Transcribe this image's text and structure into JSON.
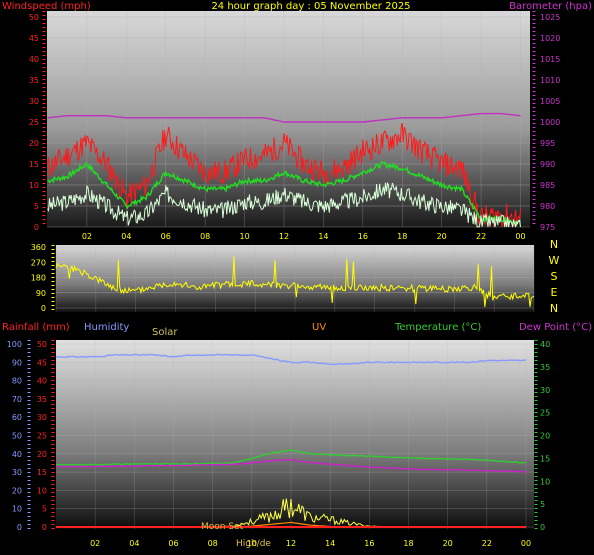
{
  "colors": {
    "wind_avg": "#22dd22",
    "wind_gust": "#ff1a1a",
    "wind_speed": "#d8ffd8",
    "baro": "#c030c0",
    "winddir": "#ffff00",
    "rain": "#ff2020",
    "humidity": "#8899ff",
    "solar": "#ffff44",
    "uv": "#ff8800",
    "temp": "#33cc33",
    "dew": "#cc22cc"
  },
  "chart_data": [
    {
      "type": "line",
      "title": "24 hour graph day : 05 November 2025",
      "y_left_label": "Windspeed (mph)",
      "y_right_label": "Barometer (hpa)",
      "x_ticks": [
        "02",
        "04",
        "06",
        "08",
        "10",
        "12",
        "14",
        "16",
        "18",
        "20",
        "22",
        "00"
      ],
      "y_left_ticks": [
        "0",
        "5",
        "10",
        "15",
        "20",
        "25",
        "30",
        "35",
        "40",
        "45",
        "50"
      ],
      "y_right_ticks": [
        "975",
        "980",
        "985",
        "990",
        "995",
        "1000",
        "1005",
        "1010",
        "1015",
        "1020",
        "1025"
      ],
      "ylim_left": [
        0,
        50
      ],
      "ylim_right": [
        975,
        1025
      ],
      "x_hours": [
        0,
        1,
        2,
        3,
        4,
        5,
        6,
        7,
        8,
        9,
        10,
        11,
        12,
        13,
        14,
        15,
        16,
        17,
        18,
        19,
        20,
        21,
        22,
        23,
        24
      ],
      "series": [
        {
          "key": "gust",
          "values": [
            14,
            17,
            20,
            15,
            7,
            10,
            22,
            17,
            13,
            13,
            16,
            17,
            20,
            15,
            13,
            14,
            18,
            20,
            22,
            18,
            15,
            14,
            2,
            3,
            2
          ]
        },
        {
          "key": "avg",
          "values": [
            11,
            12,
            15,
            10,
            5,
            7,
            13,
            11,
            9,
            9,
            11,
            11,
            13,
            11,
            10,
            11,
            13,
            15,
            14,
            12,
            10,
            9,
            2,
            2,
            1
          ]
        },
        {
          "key": "speed",
          "values": [
            5,
            6,
            8,
            5,
            2,
            3,
            8,
            6,
            4,
            4,
            6,
            6,
            8,
            6,
            5,
            6,
            7,
            9,
            8,
            6,
            5,
            4,
            1,
            1,
            0
          ]
        },
        {
          "key": "baro",
          "values": [
            1001,
            1001.5,
            1001.5,
            1001.5,
            1001,
            1001,
            1001,
            1001,
            1001,
            1001,
            1001,
            1001,
            1000,
            1000,
            1000,
            1000,
            1000,
            1000.5,
            1001,
            1001,
            1001,
            1001.5,
            1002,
            1002,
            1001.5
          ]
        }
      ]
    },
    {
      "type": "line",
      "y_ticks": [
        "0",
        "90",
        "180",
        "270",
        "360"
      ],
      "ylim": [
        0,
        360
      ],
      "dir_labels": [
        "N",
        "W",
        "S",
        "E",
        "N"
      ],
      "x_hours": [
        0,
        1,
        2,
        3,
        4,
        5,
        6,
        7,
        8,
        9,
        10,
        11,
        12,
        13,
        14,
        15,
        16,
        17,
        18,
        19,
        20,
        21,
        22,
        23,
        24
      ],
      "series": [
        {
          "key": "winddir",
          "values": [
            250,
            230,
            170,
            110,
            100,
            130,
            150,
            120,
            135,
            140,
            145,
            140,
            130,
            125,
            120,
            120,
            120,
            118,
            115,
            115,
            112,
            120,
            60,
            70,
            75
          ]
        }
      ]
    },
    {
      "type": "line",
      "legend": [
        "Rainfall (mm)",
        "Humidity",
        "Solar",
        "UV",
        "Temperature (°C)",
        "Dew Point (°C)"
      ],
      "x_ticks": [
        "02",
        "04",
        "06",
        "08",
        "10",
        "12",
        "14",
        "16",
        "18",
        "20",
        "22",
        "00"
      ],
      "y_humidity_ticks": [
        "0",
        "10",
        "20",
        "30",
        "40",
        "50",
        "60",
        "70",
        "80",
        "90",
        "100"
      ],
      "y_rain_ticks": [
        "0",
        "5",
        "10",
        "15",
        "20",
        "25",
        "30",
        "35",
        "40",
        "45",
        "50"
      ],
      "y_temp_ticks": [
        "0",
        "5",
        "10",
        "15",
        "20",
        "25",
        "30",
        "35",
        "40"
      ],
      "ylim_humidity": [
        0,
        100
      ],
      "ylim_temp": [
        0,
        40
      ],
      "annotations": [
        "Moon Set",
        "High/de"
      ],
      "x_hours": [
        0,
        1,
        2,
        3,
        4,
        5,
        6,
        7,
        8,
        9,
        10,
        11,
        12,
        13,
        14,
        15,
        16,
        17,
        18,
        19,
        20,
        21,
        22,
        23,
        24
      ],
      "series": [
        {
          "key": "humidity",
          "values": [
            93,
            93,
            93,
            94,
            94,
            94,
            93,
            94,
            94,
            94,
            94,
            92,
            90,
            90,
            89,
            89,
            90,
            90,
            90,
            90,
            90,
            90,
            91,
            91,
            91
          ]
        },
        {
          "key": "temp",
          "values": [
            13.6,
            13.6,
            13.6,
            13.7,
            13.8,
            13.8,
            13.8,
            13.8,
            13.9,
            14.0,
            15.0,
            16.2,
            16.8,
            16.0,
            15.8,
            15.6,
            15.5,
            15.3,
            15.1,
            15.0,
            14.9,
            14.8,
            14.6,
            14.3,
            14.0
          ]
        },
        {
          "key": "dew",
          "values": [
            13.2,
            13.2,
            13.2,
            13.3,
            13.3,
            13.4,
            13.4,
            13.5,
            13.6,
            13.7,
            14.0,
            14.5,
            14.7,
            14.1,
            13.7,
            13.4,
            13.1,
            12.9,
            12.7,
            12.6,
            12.5,
            12.4,
            12.3,
            12.2,
            12.1
          ]
        },
        {
          "key": "solar_pct",
          "values": [
            0,
            0,
            0,
            0,
            0,
            0,
            0,
            0,
            0,
            0.5,
            3,
            6,
            12,
            5,
            4,
            2,
            0.5,
            0,
            0,
            0,
            0,
            0,
            0,
            0,
            0
          ]
        },
        {
          "key": "uv_pct",
          "values": [
            0,
            0,
            0,
            0,
            0,
            0,
            0,
            0,
            0,
            0,
            0.5,
            1.5,
            2.5,
            1,
            0.3,
            0,
            0,
            0,
            0,
            0,
            0,
            0,
            0,
            0,
            0
          ]
        },
        {
          "key": "rain",
          "values": [
            0,
            0,
            0,
            0,
            0,
            0,
            0,
            0,
            0,
            0,
            0,
            0,
            0,
            0,
            0,
            0,
            0,
            0,
            0,
            0,
            0,
            0,
            0,
            0,
            0
          ]
        }
      ]
    }
  ]
}
